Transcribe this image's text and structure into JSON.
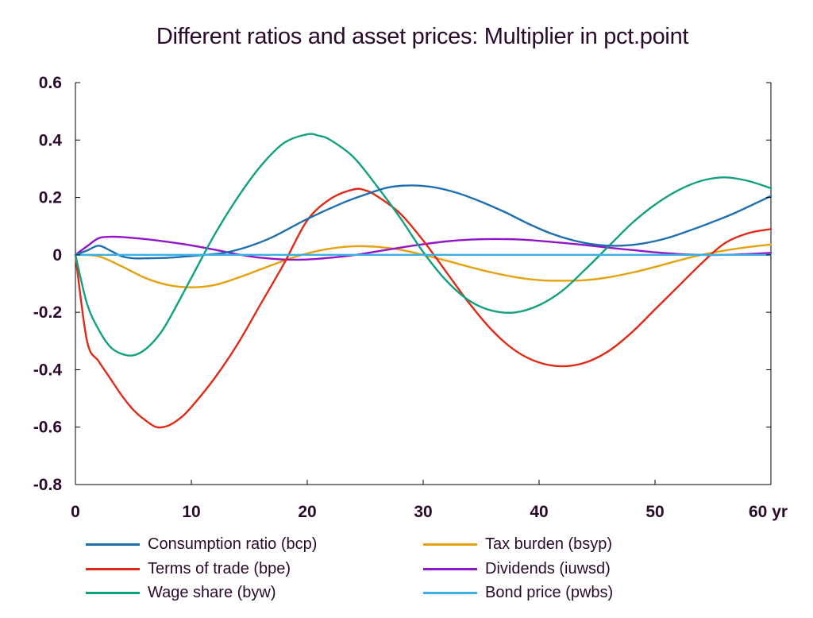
{
  "chart_data": {
    "type": "line",
    "title": "Different ratios and asset prices: Multiplier in pct.point",
    "xlabel": "",
    "ylabel": "",
    "xlim": [
      0,
      60
    ],
    "ylim": [
      -0.8,
      0.6
    ],
    "x_ticks": [
      0,
      10,
      20,
      30,
      40,
      50,
      60
    ],
    "x_tick_labels": [
      "0",
      "10",
      "20",
      "30",
      "40",
      "50",
      "60 yr"
    ],
    "y_ticks": [
      0.6,
      0.4,
      0.2,
      0,
      -0.2,
      -0.4,
      -0.6,
      -0.8
    ],
    "y_tick_labels": [
      "0.6",
      "0.4",
      "0.2",
      "0",
      "-0.2",
      "-0.4",
      "-0.6",
      "-0.8"
    ],
    "grid": false,
    "zero_line": true,
    "legend_position": "bottom",
    "series": [
      {
        "name": "Consumption ratio (bcp)",
        "color": "#1f6fb0",
        "x": [
          0,
          1,
          2,
          3,
          4,
          5,
          6,
          8,
          10,
          12,
          13,
          15,
          17,
          20,
          23,
          25,
          27,
          29,
          31,
          33,
          35,
          37,
          39,
          41,
          43,
          45,
          47,
          49,
          51,
          53,
          55,
          57,
          60
        ],
        "y": [
          0,
          0.015,
          0.032,
          0.015,
          -0.005,
          -0.012,
          -0.012,
          -0.01,
          -0.004,
          0.003,
          0.008,
          0.03,
          0.062,
          0.125,
          0.18,
          0.21,
          0.235,
          0.242,
          0.235,
          0.215,
          0.185,
          0.15,
          0.11,
          0.075,
          0.05,
          0.035,
          0.032,
          0.04,
          0.058,
          0.085,
          0.115,
          0.148,
          0.205
        ]
      },
      {
        "name": "Terms of trade (bpe)",
        "color": "#e02a17",
        "x": [
          0,
          1,
          2,
          3,
          4,
          5,
          6,
          7,
          8,
          9,
          10,
          12,
          14,
          16,
          18,
          20,
          22,
          24,
          25,
          26,
          28,
          30,
          32,
          34,
          36,
          38,
          40,
          42,
          44,
          46,
          48,
          50,
          52,
          54,
          56,
          58,
          60
        ],
        "y": [
          0,
          -0.3,
          -0.37,
          -0.43,
          -0.49,
          -0.54,
          -0.575,
          -0.6,
          -0.595,
          -0.57,
          -0.53,
          -0.43,
          -0.31,
          -0.17,
          -0.03,
          0.12,
          0.195,
          0.228,
          0.225,
          0.205,
          0.145,
          0.05,
          -0.06,
          -0.17,
          -0.265,
          -0.335,
          -0.375,
          -0.388,
          -0.375,
          -0.335,
          -0.27,
          -0.19,
          -0.11,
          -0.03,
          0.04,
          0.075,
          0.09
        ]
      },
      {
        "name": "Wage share (byw)",
        "color": "#12a17e",
        "x": [
          0,
          1,
          2,
          3,
          4,
          5,
          6,
          7,
          8,
          10,
          12,
          14,
          16,
          18,
          20,
          21,
          22,
          24,
          26,
          28,
          30,
          32,
          34,
          36,
          38,
          40,
          42,
          44,
          46,
          48,
          50,
          52,
          54,
          56,
          58,
          60
        ],
        "y": [
          0,
          -0.17,
          -0.26,
          -0.32,
          -0.345,
          -0.35,
          -0.33,
          -0.29,
          -0.23,
          -0.08,
          0.07,
          0.2,
          0.31,
          0.39,
          0.42,
          0.415,
          0.4,
          0.34,
          0.24,
          0.13,
          0.01,
          -0.09,
          -0.16,
          -0.195,
          -0.2,
          -0.175,
          -0.125,
          -0.05,
          0.03,
          0.11,
          0.175,
          0.225,
          0.258,
          0.27,
          0.258,
          0.232
        ]
      },
      {
        "name": "Tax burden (bsyp)",
        "color": "#e5a20e",
        "x": [
          0,
          2,
          4,
          6,
          8,
          10,
          12,
          14,
          16,
          18,
          20,
          22,
          24,
          26,
          28,
          30,
          32,
          34,
          36,
          38,
          40,
          42,
          44,
          46,
          48,
          50,
          52,
          54,
          56,
          58,
          60
        ],
        "y": [
          0,
          -0.005,
          -0.04,
          -0.08,
          -0.105,
          -0.113,
          -0.105,
          -0.08,
          -0.05,
          -0.02,
          0.005,
          0.022,
          0.03,
          0.028,
          0.018,
          0.0,
          -0.02,
          -0.042,
          -0.062,
          -0.078,
          -0.088,
          -0.09,
          -0.088,
          -0.078,
          -0.062,
          -0.042,
          -0.02,
          0.0,
          0.015,
          0.027,
          0.036
        ]
      },
      {
        "name": "Dividends (iuwsd)",
        "color": "#9216c9",
        "x": [
          0,
          1,
          2,
          3,
          4,
          6,
          8,
          10,
          12,
          14,
          16,
          18,
          20,
          22,
          24,
          26,
          28,
          30,
          32,
          34,
          36,
          38,
          40,
          42,
          44,
          46,
          48,
          50,
          52,
          54,
          56,
          58,
          60
        ],
        "y": [
          0,
          0.03,
          0.058,
          0.063,
          0.062,
          0.055,
          0.045,
          0.033,
          0.018,
          0.002,
          -0.01,
          -0.016,
          -0.016,
          -0.01,
          -0.001,
          0.012,
          0.025,
          0.037,
          0.047,
          0.053,
          0.055,
          0.054,
          0.049,
          0.042,
          0.034,
          0.025,
          0.017,
          0.009,
          0.003,
          0.0,
          0.0,
          0.003,
          0.007
        ]
      },
      {
        "name": "Bond price (pwbs)",
        "color": "#3bb0e6",
        "x": [
          0,
          60
        ],
        "y": [
          0,
          0
        ]
      }
    ]
  }
}
